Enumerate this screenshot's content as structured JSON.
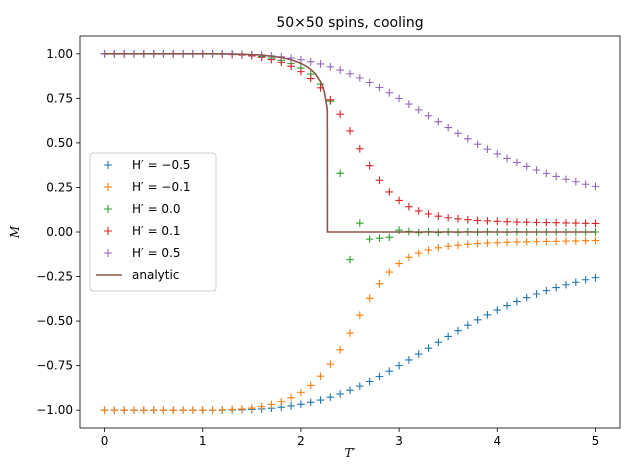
{
  "chart_data": {
    "type": "scatter",
    "title": "50×50 spins, cooling",
    "xlabel": "T′",
    "ylabel": "M",
    "xlim": [
      -0.25,
      5.25
    ],
    "ylim": [
      -1.1,
      1.1
    ],
    "xticks": [
      0,
      1,
      2,
      3,
      4,
      5
    ],
    "xtick_labels": [
      "0",
      "1",
      "2",
      "3",
      "4",
      "5"
    ],
    "yticks": [
      -1.0,
      -0.75,
      -0.5,
      -0.25,
      0.0,
      0.25,
      0.5,
      0.75,
      1.0
    ],
    "ytick_labels": [
      "−1.00",
      "−0.75",
      "−0.50",
      "−0.25",
      "0.00",
      "0.25",
      "0.50",
      "0.75",
      "1.00"
    ],
    "grid": false,
    "legend_position": "center-left",
    "marker": "+",
    "x": [
      0.0,
      0.1,
      0.2,
      0.3,
      0.4,
      0.5,
      0.6,
      0.7,
      0.8,
      0.9,
      1.0,
      1.1,
      1.2,
      1.3,
      1.4,
      1.5,
      1.6,
      1.7,
      1.8,
      1.9,
      2.0,
      2.1,
      2.2,
      2.3,
      2.4,
      2.5,
      2.6,
      2.7,
      2.8,
      2.9,
      3.0,
      3.1,
      3.2,
      3.3,
      3.4,
      3.5,
      3.6,
      3.7,
      3.8,
      3.9,
      4.0,
      4.1,
      4.2,
      4.3,
      4.4,
      4.5,
      4.6,
      4.7,
      4.8,
      4.9,
      5.0
    ],
    "series": [
      {
        "name": "H′ = −0.5",
        "color": "#1f77b4",
        "values": [
          -1.0,
          -1.0,
          -1.0,
          -1.0,
          -1.0,
          -1.0,
          -1.0,
          -1.0,
          -1.0,
          -1.0,
          -1.0,
          -1.0,
          -1.0,
          -0.999,
          -0.998,
          -0.996,
          -0.993,
          -0.989,
          -0.983,
          -0.976,
          -0.967,
          -0.956,
          -0.943,
          -0.927,
          -0.909,
          -0.888,
          -0.865,
          -0.839,
          -0.811,
          -0.781,
          -0.75,
          -0.718,
          -0.685,
          -0.652,
          -0.619,
          -0.586,
          -0.554,
          -0.523,
          -0.493,
          -0.465,
          -0.438,
          -0.413,
          -0.39,
          -0.368,
          -0.348,
          -0.329,
          -0.312,
          -0.296,
          -0.282,
          -0.268,
          -0.256
        ]
      },
      {
        "name": "H′ = −0.1",
        "color": "#ff7f0e",
        "values": [
          -1.0,
          -1.0,
          -1.0,
          -1.0,
          -1.0,
          -1.0,
          -1.0,
          -1.0,
          -1.0,
          -1.0,
          -1.0,
          -0.999,
          -0.998,
          -0.996,
          -0.993,
          -0.988,
          -0.98,
          -0.968,
          -0.952,
          -0.93,
          -0.9,
          -0.861,
          -0.809,
          -0.742,
          -0.661,
          -0.567,
          -0.467,
          -0.372,
          -0.29,
          -0.225,
          -0.177,
          -0.142,
          -0.118,
          -0.101,
          -0.089,
          -0.08,
          -0.074,
          -0.069,
          -0.065,
          -0.062,
          -0.06,
          -0.058,
          -0.056,
          -0.055,
          -0.054,
          -0.053,
          -0.052,
          -0.051,
          -0.05,
          -0.049,
          -0.048
        ]
      },
      {
        "name": "H′ = 0.0",
        "color": "#2ca02c",
        "values": [
          1.0,
          1.0,
          1.0,
          1.0,
          1.0,
          1.0,
          1.0,
          1.0,
          1.0,
          1.0,
          1.0,
          1.0,
          0.999,
          0.998,
          0.996,
          0.992,
          0.985,
          0.976,
          0.963,
          0.945,
          0.92,
          0.886,
          0.83,
          0.735,
          0.33,
          -0.155,
          0.05,
          -0.04,
          -0.035,
          -0.03,
          0.01,
          0.003,
          -0.004,
          0.002,
          -0.003,
          0.001,
          -0.002,
          0.002,
          -0.001,
          0.001,
          0.0,
          -0.001,
          0.001,
          0.0,
          0.0,
          0.0,
          0.0,
          0.0,
          0.0,
          0.0,
          0.0
        ]
      },
      {
        "name": "H′ = 0.1",
        "color": "#d62728",
        "values": [
          1.0,
          1.0,
          1.0,
          1.0,
          1.0,
          1.0,
          1.0,
          1.0,
          1.0,
          1.0,
          1.0,
          0.999,
          0.998,
          0.996,
          0.993,
          0.988,
          0.98,
          0.968,
          0.952,
          0.93,
          0.9,
          0.861,
          0.809,
          0.742,
          0.661,
          0.567,
          0.467,
          0.372,
          0.29,
          0.225,
          0.177,
          0.142,
          0.118,
          0.101,
          0.089,
          0.08,
          0.074,
          0.069,
          0.065,
          0.062,
          0.06,
          0.058,
          0.056,
          0.055,
          0.054,
          0.053,
          0.052,
          0.051,
          0.05,
          0.049,
          0.048
        ]
      },
      {
        "name": "H′ = 0.5",
        "color": "#9467bd",
        "values": [
          1.0,
          1.0,
          1.0,
          1.0,
          1.0,
          1.0,
          1.0,
          1.0,
          1.0,
          1.0,
          1.0,
          1.0,
          1.0,
          0.999,
          0.998,
          0.996,
          0.993,
          0.989,
          0.983,
          0.976,
          0.967,
          0.956,
          0.943,
          0.927,
          0.909,
          0.888,
          0.865,
          0.839,
          0.811,
          0.781,
          0.75,
          0.718,
          0.685,
          0.652,
          0.619,
          0.586,
          0.554,
          0.523,
          0.493,
          0.465,
          0.438,
          0.413,
          0.39,
          0.368,
          0.348,
          0.329,
          0.312,
          0.296,
          0.282,
          0.268,
          0.256
        ]
      }
    ],
    "analytic": {
      "name": "analytic",
      "color": "#8c564b",
      "x": [
        0.0,
        0.2,
        0.4,
        0.6,
        0.8,
        1.0,
        1.2,
        1.4,
        1.6,
        1.8,
        1.9,
        2.0,
        2.05,
        2.1,
        2.15,
        2.2,
        2.22,
        2.24,
        2.26,
        2.269,
        2.27,
        2.35,
        3.0,
        4.0,
        5.0
      ],
      "values": [
        1.0,
        1.0,
        1.0,
        1.0,
        1.0,
        1.0,
        0.9997,
        0.998,
        0.9932,
        0.9793,
        0.9666,
        0.9465,
        0.932,
        0.9128,
        0.8857,
        0.8431,
        0.8183,
        0.7829,
        0.7175,
        0.6844,
        0.0,
        0.0,
        0.0,
        0.0,
        0.0
      ]
    }
  }
}
